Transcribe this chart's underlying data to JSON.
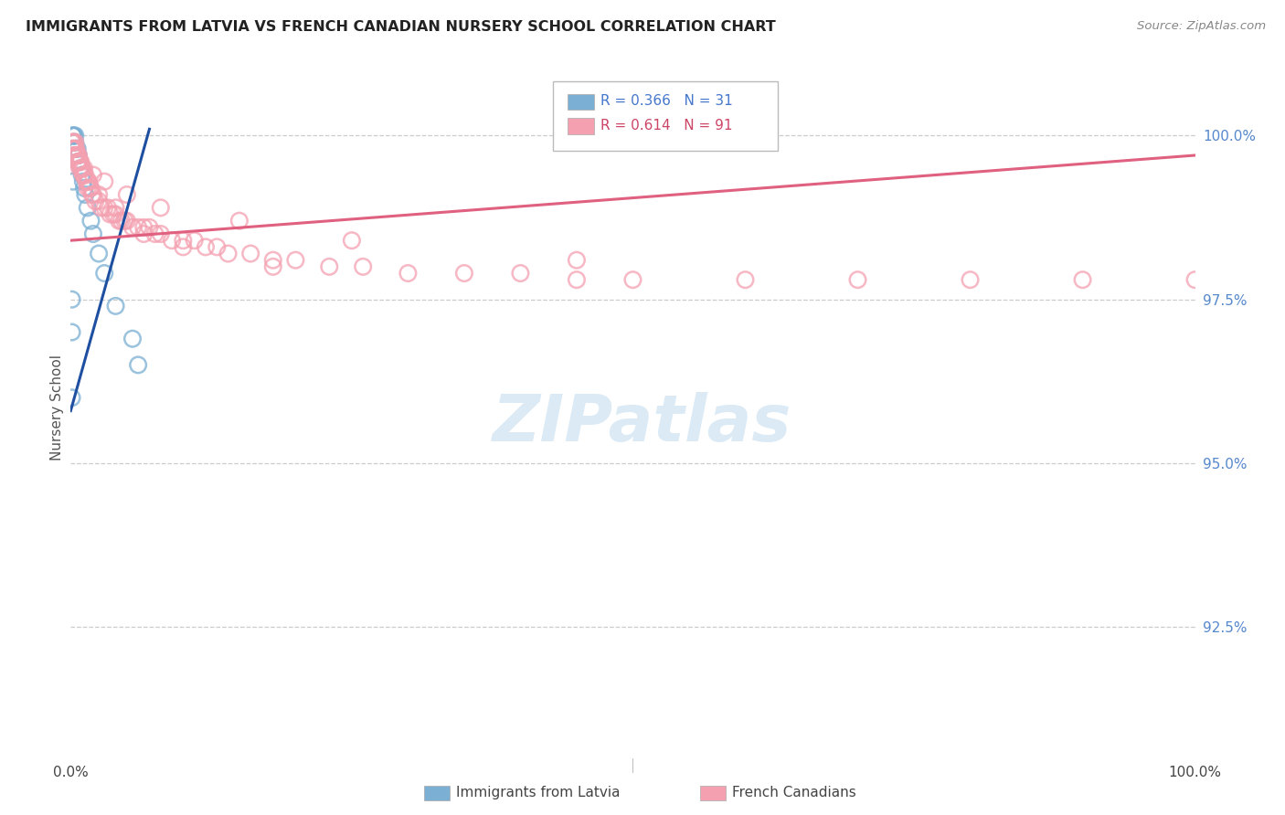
{
  "title": "IMMIGRANTS FROM LATVIA VS FRENCH CANADIAN NURSERY SCHOOL CORRELATION CHART",
  "source": "Source: ZipAtlas.com",
  "ylabel": "Nursery School",
  "ytick_labels": [
    "100.0%",
    "97.5%",
    "95.0%",
    "92.5%"
  ],
  "ytick_values": [
    1.0,
    0.975,
    0.95,
    0.925
  ],
  "xmin": 0.0,
  "xmax": 1.0,
  "ymin": 0.905,
  "ymax": 1.012,
  "legend_blue_r": "R = 0.366",
  "legend_blue_n": "N = 31",
  "legend_pink_r": "R = 0.614",
  "legend_pink_n": "N = 91",
  "blue_color": "#7BAFD4",
  "pink_color": "#F4A0B0",
  "blue_line_color": "#1F4FA0",
  "pink_line_color": "#E06080",
  "blue_x": [
    0.002,
    0.002,
    0.003,
    0.003,
    0.004,
    0.004,
    0.005,
    0.005,
    0.006,
    0.006,
    0.007,
    0.007,
    0.008,
    0.009,
    0.01,
    0.01,
    0.011,
    0.012,
    0.013,
    0.015,
    0.018,
    0.02,
    0.025,
    0.03,
    0.04,
    0.055,
    0.06,
    0.002,
    0.001,
    0.001,
    0.001
  ],
  "blue_y": [
    1.0,
    1.0,
    1.0,
    0.999,
    1.0,
    0.999,
    0.998,
    0.997,
    0.998,
    0.997,
    0.997,
    0.996,
    0.996,
    0.995,
    0.995,
    0.994,
    0.993,
    0.992,
    0.991,
    0.989,
    0.987,
    0.985,
    0.982,
    0.979,
    0.974,
    0.969,
    0.965,
    0.993,
    0.975,
    0.97,
    0.96
  ],
  "pink_x": [
    0.001,
    0.002,
    0.003,
    0.003,
    0.004,
    0.004,
    0.005,
    0.005,
    0.006,
    0.006,
    0.007,
    0.007,
    0.008,
    0.008,
    0.009,
    0.01,
    0.01,
    0.011,
    0.012,
    0.013,
    0.014,
    0.015,
    0.015,
    0.016,
    0.017,
    0.018,
    0.019,
    0.02,
    0.022,
    0.025,
    0.027,
    0.03,
    0.033,
    0.035,
    0.038,
    0.04,
    0.043,
    0.045,
    0.048,
    0.05,
    0.055,
    0.06,
    0.065,
    0.07,
    0.075,
    0.08,
    0.09,
    0.1,
    0.11,
    0.12,
    0.13,
    0.14,
    0.16,
    0.18,
    0.2,
    0.23,
    0.26,
    0.3,
    0.35,
    0.4,
    0.45,
    0.5,
    0.6,
    0.7,
    0.8,
    0.9,
    1.0,
    0.002,
    0.004,
    0.006,
    0.01,
    0.015,
    0.025,
    0.04,
    0.065,
    0.1,
    0.18,
    0.001,
    0.002,
    0.003,
    0.004,
    0.006,
    0.008,
    0.012,
    0.02,
    0.03,
    0.05,
    0.08,
    0.15,
    0.25,
    0.45
  ],
  "pink_y": [
    0.999,
    0.999,
    0.999,
    0.998,
    0.999,
    0.998,
    0.998,
    0.997,
    0.997,
    0.997,
    0.997,
    0.996,
    0.996,
    0.995,
    0.996,
    0.995,
    0.995,
    0.994,
    0.994,
    0.994,
    0.993,
    0.993,
    0.992,
    0.993,
    0.992,
    0.992,
    0.991,
    0.991,
    0.99,
    0.99,
    0.989,
    0.989,
    0.989,
    0.988,
    0.988,
    0.988,
    0.987,
    0.987,
    0.987,
    0.987,
    0.986,
    0.986,
    0.985,
    0.986,
    0.985,
    0.985,
    0.984,
    0.984,
    0.984,
    0.983,
    0.983,
    0.982,
    0.982,
    0.981,
    0.981,
    0.98,
    0.98,
    0.979,
    0.979,
    0.979,
    0.978,
    0.978,
    0.978,
    0.978,
    0.978,
    0.978,
    0.978,
    0.998,
    0.997,
    0.996,
    0.995,
    0.993,
    0.991,
    0.989,
    0.986,
    0.983,
    0.98,
    0.998,
    0.998,
    0.997,
    0.997,
    0.996,
    0.996,
    0.995,
    0.994,
    0.993,
    0.991,
    0.989,
    0.987,
    0.984,
    0.981
  ],
  "blue_line_x": [
    0.0,
    0.07
  ],
  "blue_line_y": [
    0.958,
    1.001
  ],
  "pink_line_x": [
    0.0,
    1.0
  ],
  "pink_line_y": [
    0.984,
    0.997
  ]
}
